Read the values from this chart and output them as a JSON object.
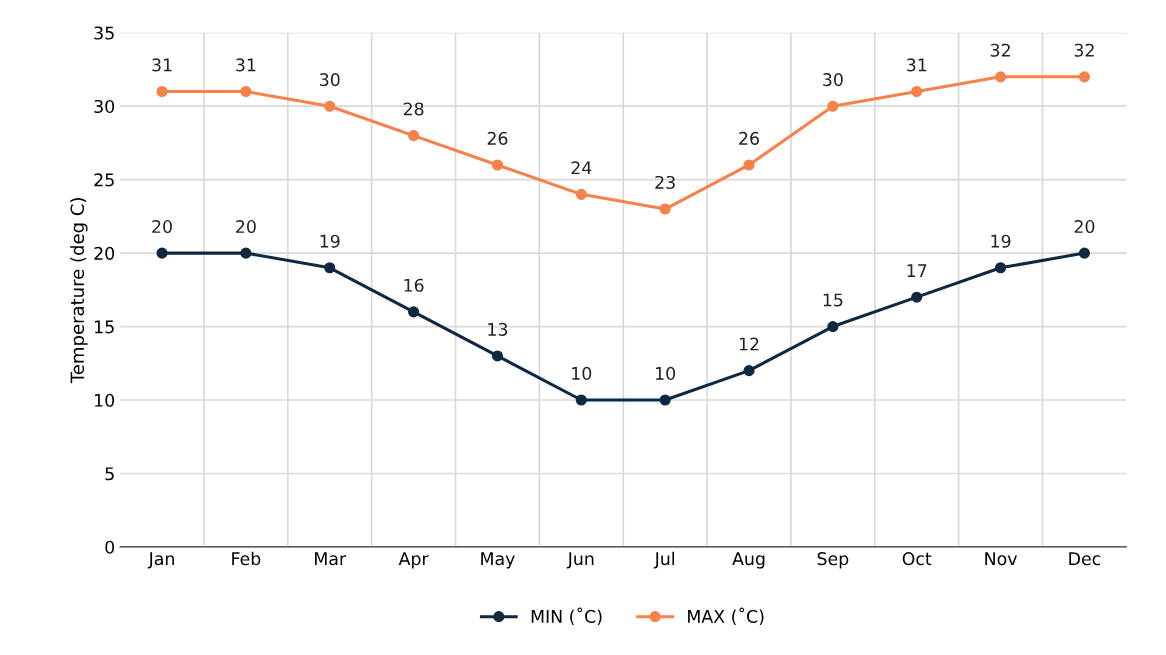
{
  "chart_data": {
    "type": "line",
    "ylabel": "Temperature (deg C)",
    "categories": [
      "Jan",
      "Feb",
      "Mar",
      "Apr",
      "May",
      "Jun",
      "Jul",
      "Aug",
      "Sep",
      "Oct",
      "Nov",
      "Dec"
    ],
    "series": [
      {
        "name": "MIN (˚C)",
        "color": "#0e2841",
        "values": [
          20,
          20,
          19,
          16,
          13,
          10,
          10,
          12,
          15,
          17,
          19,
          20
        ]
      },
      {
        "name": "MAX (˚C)",
        "color": "#f4824a",
        "values": [
          31,
          31,
          30,
          28,
          26,
          24,
          23,
          26,
          30,
          31,
          32,
          32
        ]
      }
    ],
    "ylim": [
      0,
      35
    ],
    "yticks": [
      0,
      5,
      10,
      15,
      20,
      25,
      30,
      35
    ],
    "grid": true,
    "legend": "bottom",
    "marker": "circle",
    "line_style": "solid",
    "data_labels": true
  }
}
